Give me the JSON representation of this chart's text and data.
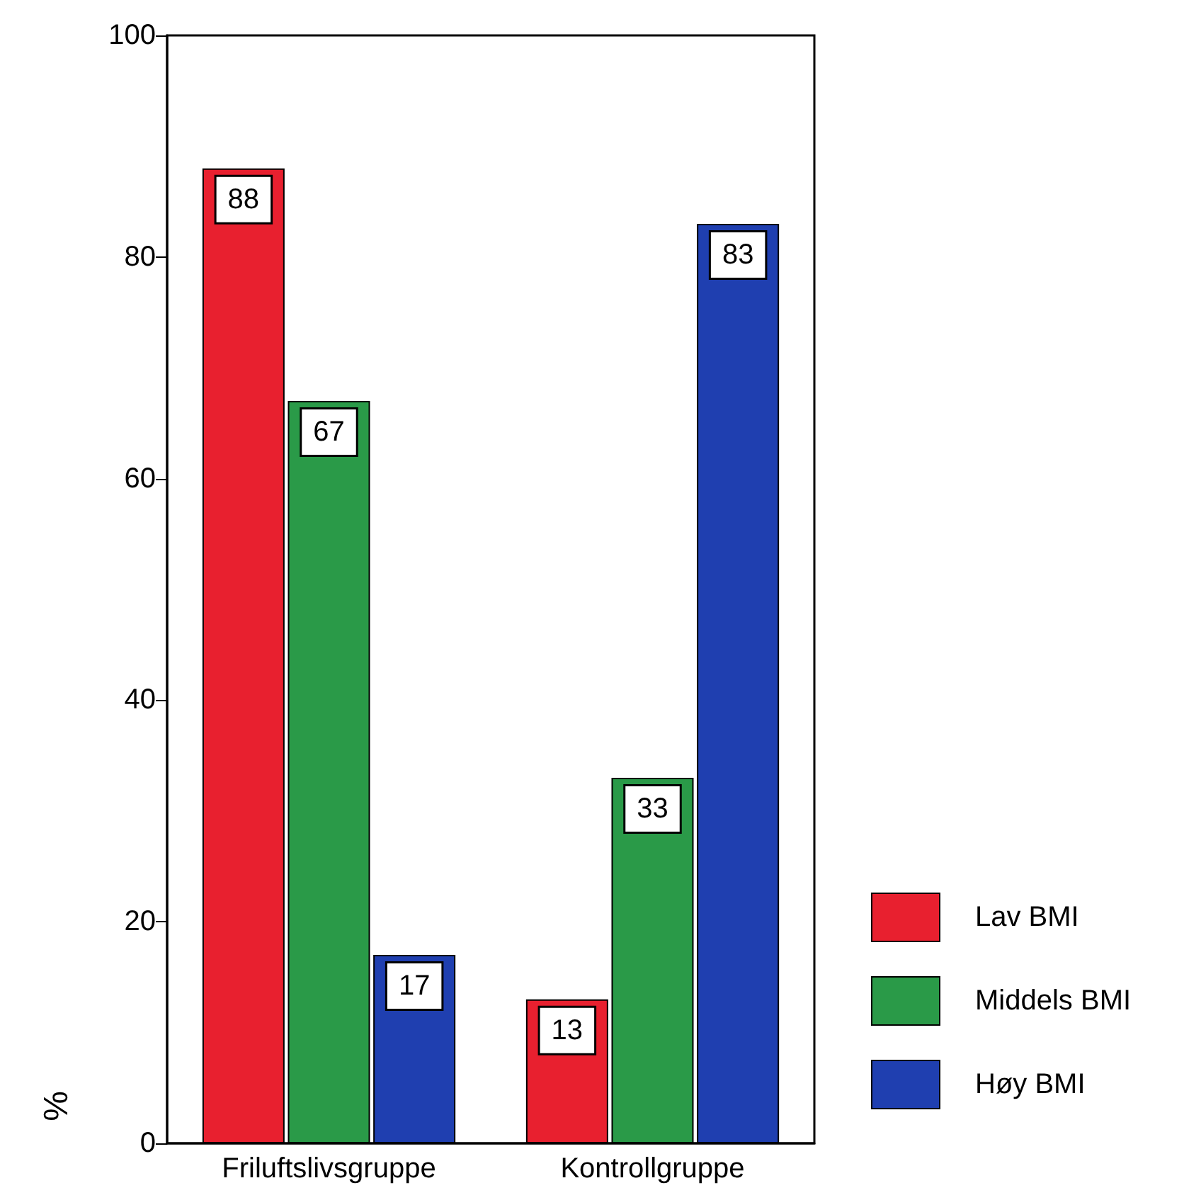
{
  "chart_data": {
    "type": "bar",
    "ylabel": "%",
    "categories": [
      "Friluftslivsgruppe",
      "Kontrollgruppe"
    ],
    "series": [
      {
        "name": "Lav BMI",
        "color": "#e8202f",
        "values": [
          88,
          13
        ]
      },
      {
        "name": "Middels BMI",
        "color": "#2a9a48",
        "values": [
          67,
          33
        ]
      },
      {
        "name": "Høy BMI",
        "color": "#1f3fb0",
        "values": [
          17,
          83
        ]
      }
    ],
    "ylim": [
      0,
      100
    ],
    "yticks": [
      0,
      20,
      40,
      60,
      80,
      100
    ],
    "grid": false,
    "legend": "right",
    "data_labels": true
  }
}
